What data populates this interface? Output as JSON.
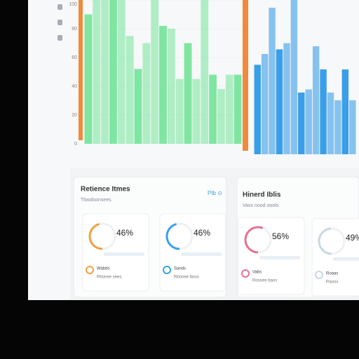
{
  "bar_charts": [
    {
      "color": "#7fe6a2",
      "values": [
        90,
        100,
        100,
        100,
        100,
        75,
        52,
        70,
        100,
        82,
        80,
        45,
        70,
        45,
        100,
        48,
        38,
        48,
        48
      ],
      "ylim": [
        0,
        100
      ],
      "yticks": [
        0,
        20,
        40,
        60,
        80,
        100
      ]
    },
    {
      "color": "#3a9ee8",
      "values": [
        58,
        65,
        95,
        68,
        72,
        100,
        40,
        42,
        70,
        55,
        40,
        35,
        55,
        35
      ],
      "ylim": [
        0,
        100
      ]
    }
  ],
  "panels": [
    {
      "title": "Retience Itmes",
      "subtitle": "Tloodsonsees",
      "link": "Ptb ⊙"
    },
    {
      "title": "Hinerd Iblis",
      "subtitle": "Vass nood oools"
    }
  ],
  "cards": [
    {
      "percent": 46,
      "percent_label": "46%",
      "color": "#f0a040",
      "name": "Wabds",
      "detail": "Rbonee sees"
    },
    {
      "percent": 46,
      "percent_label": "46%",
      "color": "#3aa0e8",
      "name": "Sands",
      "detail": "Rbonee boos"
    },
    {
      "percent": 56,
      "percent_label": "56%",
      "color": "#e87090",
      "name": "Vabs",
      "detail": "Roosee baos"
    },
    {
      "percent": 49,
      "percent_label": "49%",
      "color": "#c8d8e0",
      "name": "Roaas",
      "detail": "Raoos"
    }
  ]
}
